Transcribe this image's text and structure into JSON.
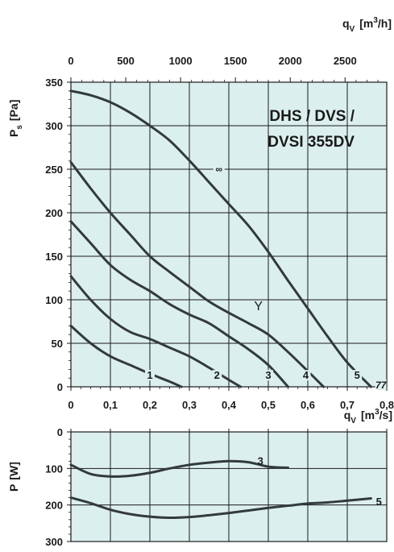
{
  "chart_data": [
    {
      "type": "line",
      "title": "DHS / DVS / DVSI 355DV",
      "title_lines": [
        "DHS / DVS /",
        "DVSI 355DV"
      ],
      "ylabel_main": "P",
      "ylabel_sub": "s",
      "ylabel_unit": "[Pa]",
      "xlabel_main": "q",
      "xlabel_sub": "V",
      "xlabel_unit": "[m",
      "xlabel_sup": "3",
      "xlabel_unit_end": "/s]",
      "x2label_main": "q",
      "x2label_sub": "V",
      "x2label_unit": "[m",
      "x2label_sup": "3",
      "x2label_unit_end": "/h]",
      "xlim": [
        0,
        0.8
      ],
      "ylim": [
        0,
        350
      ],
      "x2lim": [
        0,
        2880
      ],
      "x_ticks": [
        0,
        0.1,
        0.2,
        0.3,
        0.4,
        0.5,
        0.6,
        0.7,
        0.8
      ],
      "x_tick_labels": [
        "0",
        "0,1",
        "0,2",
        "0,3",
        "0,4",
        "0,5",
        "0,6",
        "0,7",
        "0,8"
      ],
      "y_ticks": [
        0,
        50,
        100,
        150,
        200,
        250,
        300,
        350
      ],
      "y_tick_labels": [
        "0",
        "50",
        "100",
        "150",
        "200",
        "250",
        "300",
        "350"
      ],
      "x2_ticks": [
        0,
        500,
        1000,
        1500,
        2000,
        2500
      ],
      "x2_tick_labels": [
        "0",
        "500",
        "1000",
        "1500",
        "2000",
        "2500"
      ],
      "grid": true,
      "background": "#dcefef",
      "series": [
        {
          "name": "1",
          "label_at": [
            0.2,
            10
          ],
          "values": [
            [
              0,
              70
            ],
            [
              0.05,
              50
            ],
            [
              0.1,
              35
            ],
            [
              0.15,
              25
            ],
            [
              0.2,
              15
            ],
            [
              0.25,
              6
            ],
            [
              0.28,
              0
            ]
          ]
        },
        {
          "name": "2",
          "label_at": [
            0.37,
            10
          ],
          "values": [
            [
              0,
              127
            ],
            [
              0.05,
              100
            ],
            [
              0.1,
              78
            ],
            [
              0.15,
              63
            ],
            [
              0.2,
              55
            ],
            [
              0.25,
              45
            ],
            [
              0.3,
              35
            ],
            [
              0.35,
              22
            ],
            [
              0.4,
              8
            ],
            [
              0.43,
              0
            ]
          ]
        },
        {
          "name": "3",
          "label_at": [
            0.5,
            10
          ],
          "values": [
            [
              0,
              190
            ],
            [
              0.05,
              165
            ],
            [
              0.1,
              140
            ],
            [
              0.15,
              123
            ],
            [
              0.2,
              110
            ],
            [
              0.25,
              95
            ],
            [
              0.3,
              83
            ],
            [
              0.35,
              73
            ],
            [
              0.4,
              58
            ],
            [
              0.45,
              43
            ],
            [
              0.5,
              25
            ],
            [
              0.55,
              0
            ]
          ]
        },
        {
          "name": "4",
          "label_at": [
            0.595,
            10
          ],
          "values": [
            [
              0,
              258
            ],
            [
              0.05,
              228
            ],
            [
              0.1,
              200
            ],
            [
              0.15,
              175
            ],
            [
              0.2,
              150
            ],
            [
              0.25,
              132
            ],
            [
              0.3,
              115
            ],
            [
              0.35,
              98
            ],
            [
              0.4,
              85
            ],
            [
              0.45,
              73
            ],
            [
              0.5,
              60
            ],
            [
              0.55,
              40
            ],
            [
              0.6,
              18
            ],
            [
              0.64,
              0
            ]
          ]
        },
        {
          "name": "5",
          "label_at": [
            0.725,
            10
          ],
          "values": [
            [
              0,
              340
            ],
            [
              0.05,
              335
            ],
            [
              0.1,
              327
            ],
            [
              0.15,
              315
            ],
            [
              0.2,
              300
            ],
            [
              0.25,
              283
            ],
            [
              0.3,
              260
            ],
            [
              0.35,
              235
            ],
            [
              0.4,
              210
            ],
            [
              0.45,
              185
            ],
            [
              0.5,
              155
            ],
            [
              0.55,
              122
            ],
            [
              0.6,
              90
            ],
            [
              0.65,
              58
            ],
            [
              0.7,
              28
            ],
            [
              0.76,
              0
            ]
          ]
        }
      ],
      "annotations": [
        {
          "text": "Y",
          "x": 0.475,
          "y": 90
        },
        {
          "text": "∞",
          "x": 0.375,
          "y": 248
        },
        {
          "text": "77",
          "x": 0.785,
          "y": 0
        }
      ]
    },
    {
      "type": "line",
      "ylabel_main": "P",
      "ylabel_unit": "[W]",
      "xlim": [
        0,
        0.8
      ],
      "ylim": [
        300,
        0
      ],
      "y_ticks": [
        0,
        100,
        200,
        300
      ],
      "y_tick_labels": [
        "0",
        "100",
        "200",
        "300"
      ],
      "grid": true,
      "background": "#dcefef",
      "series": [
        {
          "name": "3",
          "label_at": [
            0.48,
            78
          ],
          "values": [
            [
              0,
              90
            ],
            [
              0.05,
              115
            ],
            [
              0.1,
              122
            ],
            [
              0.15,
              120
            ],
            [
              0.2,
              112
            ],
            [
              0.25,
              100
            ],
            [
              0.3,
              90
            ],
            [
              0.35,
              84
            ],
            [
              0.4,
              80
            ],
            [
              0.45,
              83
            ],
            [
              0.5,
              95
            ],
            [
              0.55,
              98
            ]
          ]
        },
        {
          "name": "5",
          "label_at": [
            0.78,
            190
          ],
          "values": [
            [
              0,
              180
            ],
            [
              0.05,
              195
            ],
            [
              0.1,
              213
            ],
            [
              0.15,
              225
            ],
            [
              0.2,
              232
            ],
            [
              0.25,
              235
            ],
            [
              0.3,
              233
            ],
            [
              0.35,
              228
            ],
            [
              0.4,
              222
            ],
            [
              0.45,
              215
            ],
            [
              0.5,
              208
            ],
            [
              0.55,
              202
            ],
            [
              0.6,
              196
            ],
            [
              0.65,
              193
            ],
            [
              0.7,
              188
            ],
            [
              0.76,
              182
            ]
          ]
        }
      ]
    }
  ]
}
